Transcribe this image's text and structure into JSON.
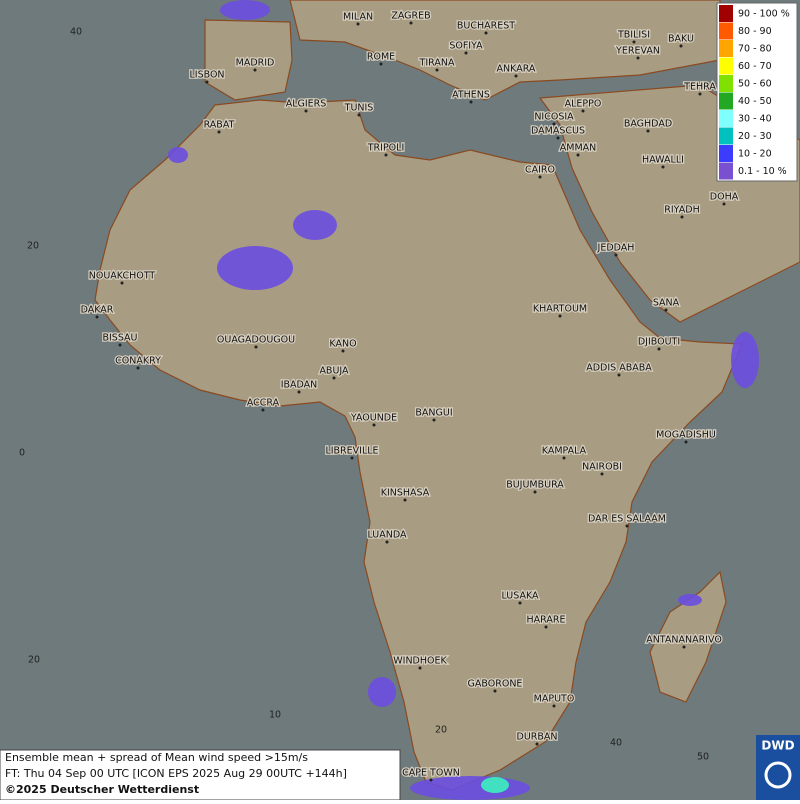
{
  "map": {
    "cities": [
      "MILAN",
      "ZAGREB",
      "BUCHAREST",
      "TBILISI",
      "BAKU",
      "YEREVAN",
      "SOFIYA",
      "ROME",
      "TIRANA",
      "MADRID",
      "ANKARA",
      "LISBON",
      "TEHRA",
      "ATHENS",
      "ALGIERS",
      "TUNIS",
      "ALEPPO",
      "RABAT",
      "NICOSIA",
      "BAGHDAD",
      "DAMASCUS",
      "AMMAN",
      "TRIPOLI",
      "CAIRO",
      "HAWALLI",
      "DOHA",
      "RIYADH",
      "JEDDAH",
      "NOUAKCHOTT",
      "SANA",
      "KHARTOUM",
      "DAKAR",
      "BISSAU",
      "DJIBOUTI",
      "OUAGADOUGOU",
      "KANO",
      "CONAKRY",
      "ADDIS ABABA",
      "ABUJA",
      "IBADAN",
      "ACCRA",
      "YAOUNDE",
      "BANGUI",
      "MOGADISHU",
      "LIBREVILLE",
      "KAMPALA",
      "NAIROBI",
      "BUJUMBURA",
      "KINSHASA",
      "DAR ES SALAAM",
      "LUANDA",
      "LUSAKA",
      "HARARE",
      "ANTANANARIVO",
      "WINDHOEK",
      "GABORONE",
      "MAPUTO",
      "DURBAN",
      "CAPE TOWN"
    ],
    "lat_labels": [
      "40",
      "20",
      "0",
      "20"
    ],
    "lon_labels": [
      "10",
      "20",
      "40",
      "50"
    ]
  },
  "legend": {
    "items": [
      {
        "label": "90 - 100 %",
        "color": "#a00000"
      },
      {
        "label": "80 - 90",
        "color": "#ff5a00"
      },
      {
        "label": "70 - 80",
        "color": "#ffa500"
      },
      {
        "label": "60 - 70",
        "color": "#ffff00"
      },
      {
        "label": "50 - 60",
        "color": "#80e000"
      },
      {
        "label": "40 - 50",
        "color": "#22a822"
      },
      {
        "label": "30 - 40",
        "color": "#80ffff"
      },
      {
        "label": "20 - 30",
        "color": "#00c0c0"
      },
      {
        "label": "10 - 20",
        "color": "#3c3cff"
      },
      {
        "label": "0.1 - 10 %",
        "color": "#7850d0"
      }
    ]
  },
  "footer": {
    "lines": [
      "Ensemble mean + spread of Mean wind speed >15m/s",
      "FT: Thu 04 Sep 00 UTC [ICON EPS 2025 Aug 29 00UTC +144h]",
      "©2025 Deutscher Wetterdienst"
    ]
  },
  "logo": "DWD"
}
